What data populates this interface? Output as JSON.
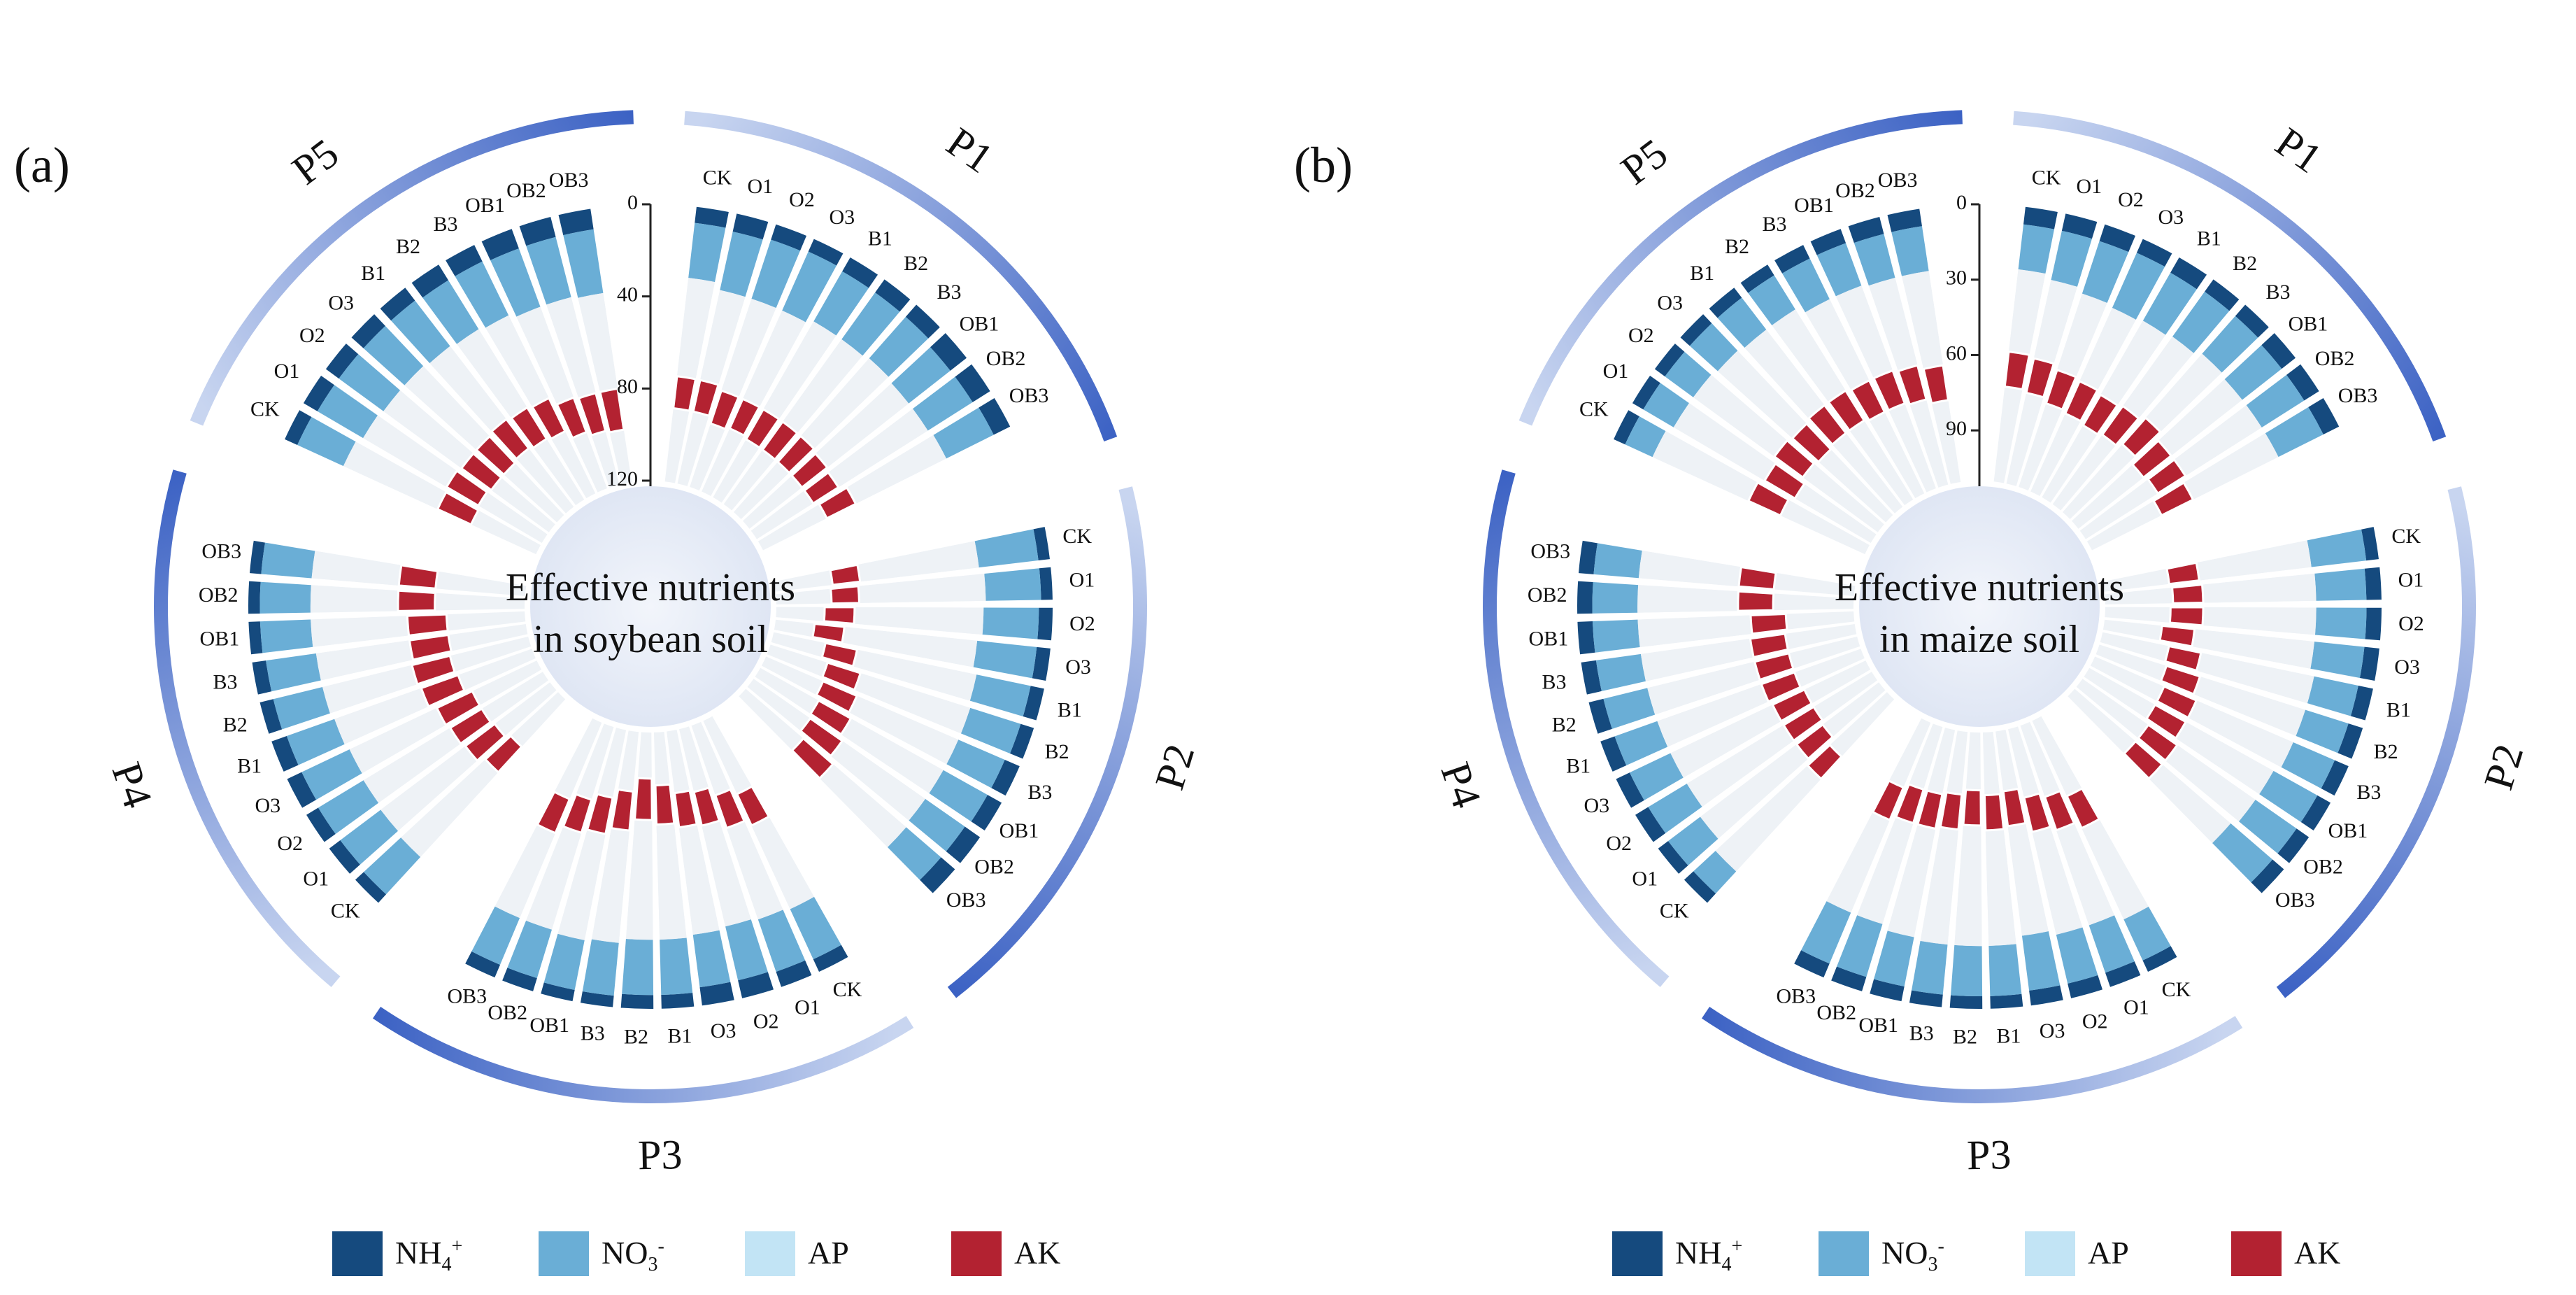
{
  "colors": {
    "NH4": "#154a7e",
    "NO3": "#6aaed6",
    "AP": "#c2e4f5",
    "AK": "#b32231",
    "track": "#eef2f6",
    "center_fill": "#dfe6f4",
    "arc_dark": "#3c62c4",
    "arc_light": "#c8d5f0"
  },
  "legend": {
    "NH4": {
      "base": "NH",
      "sub": "4",
      "sup": "+"
    },
    "NO3": {
      "base": "NO",
      "sub": "3",
      "sup": "-"
    },
    "AP": "AP",
    "AK": "AK"
  },
  "chart_data": [
    {
      "type": "circular-stacked-bar",
      "panel_label": "(a)",
      "center_title": [
        "Effective nutrients",
        "in soybean soil"
      ],
      "series": [
        "NH4+",
        "NO3-",
        "AP",
        "AK"
      ],
      "stack_order": "inner-to-outer: AK, AP, NO3-, NH4+",
      "radial_axis": {
        "ticks": [
          "0",
          "40",
          "80",
          "120"
        ],
        "max": 120
      },
      "groups": [
        {
          "name": "P1",
          "categories": [
            "CK",
            "O1",
            "O2",
            "O3",
            "B1",
            "B2",
            "B3",
            "OB1",
            "OB2",
            "OB3"
          ],
          "NH4": [
            7,
            8,
            7,
            6,
            7,
            7,
            7,
            9,
            9,
            8
          ],
          "NO3": [
            24,
            26,
            27,
            28,
            25,
            25,
            24,
            23,
            23,
            23
          ],
          "AP": [
            43,
            40,
            42,
            42,
            44,
            44,
            45,
            45,
            46,
            44
          ],
          "AK": [
            14,
            14,
            15,
            14,
            15,
            15,
            15,
            14,
            13,
            14
          ]
        },
        {
          "name": "P2",
          "categories": [
            "CK",
            "O1",
            "O2",
            "O3",
            "B1",
            "B2",
            "B3",
            "OB1",
            "OB2",
            "OB3"
          ],
          "NH4": [
            5,
            5,
            6,
            6,
            6,
            6,
            7,
            7,
            8,
            8
          ],
          "NO3": [
            26,
            24,
            24,
            26,
            24,
            23,
            22,
            22,
            21,
            20
          ],
          "AP": [
            52,
            55,
            56,
            58,
            53,
            50,
            48,
            46,
            44,
            42
          ],
          "AK": [
            12,
            12,
            13,
            13,
            14,
            15,
            16,
            16,
            17,
            17
          ]
        },
        {
          "name": "P3",
          "categories": [
            "CK",
            "O1",
            "O2",
            "O3",
            "B1",
            "B2",
            "B3",
            "OB1",
            "OB2",
            "OB3"
          ],
          "NH4": [
            6,
            7,
            8,
            8,
            6,
            6,
            5,
            5,
            6,
            6
          ],
          "NO3": [
            24,
            24,
            24,
            23,
            24,
            24,
            23,
            22,
            22,
            22
          ],
          "AP": [
            40,
            42,
            45,
            47,
            50,
            52,
            49,
            47,
            44,
            40
          ],
          "AK": [
            15,
            15,
            15,
            15,
            17,
            18,
            17,
            16,
            15,
            16
          ]
        },
        {
          "name": "P4",
          "categories": [
            "CK",
            "O1",
            "O2",
            "O3",
            "B1",
            "B2",
            "B3",
            "OB1",
            "OB2",
            "OB3"
          ],
          "NH4": [
            5,
            6,
            6,
            7,
            7,
            6,
            6,
            5,
            5,
            5
          ],
          "NO3": [
            22,
            22,
            23,
            23,
            22,
            22,
            22,
            22,
            22,
            22
          ],
          "AP": [
            50,
            46,
            44,
            42,
            40,
            40,
            41,
            42,
            38,
            38
          ],
          "AK": [
            15,
            16,
            16,
            17,
            17,
            17,
            17,
            17,
            16,
            16
          ]
        },
        {
          "name": "P5",
          "categories": [
            "CK",
            "O1",
            "O2",
            "O3",
            "B1",
            "B2",
            "B3",
            "OB1",
            "OB2",
            "OB3"
          ],
          "NH4": [
            6,
            7,
            7,
            7,
            7,
            8,
            8,
            9,
            9,
            9
          ],
          "NO3": [
            22,
            23,
            24,
            24,
            25,
            25,
            26,
            27,
            27,
            28
          ],
          "AP": [
            45,
            42,
            42,
            42,
            40,
            40,
            40,
            42,
            43,
            42
          ],
          "AK": [
            16,
            16,
            16,
            16,
            16,
            16,
            16,
            16,
            17,
            18
          ]
        }
      ]
    },
    {
      "type": "circular-stacked-bar",
      "panel_label": "(b)",
      "center_title": [
        "Effective nutrients",
        "in maize soil"
      ],
      "series": [
        "NH4+",
        "NO3-",
        "AP",
        "AK"
      ],
      "stack_order": "inner-to-outer: AK, AP, NO3-, NH4+",
      "radial_axis": {
        "ticks": [
          "0",
          "30",
          "60",
          "90"
        ],
        "max": 110
      },
      "groups": [
        {
          "name": "P1",
          "categories": [
            "CK",
            "O1",
            "O2",
            "O3",
            "B1",
            "B2",
            "B3",
            "OB1",
            "OB2",
            "OB3"
          ],
          "NH4": [
            7,
            7,
            7,
            6,
            7,
            6,
            6,
            7,
            7,
            7
          ],
          "NO3": [
            18,
            20,
            22,
            24,
            22,
            22,
            20,
            20,
            20,
            20
          ],
          "AP": [
            33,
            32,
            32,
            32,
            34,
            34,
            34,
            36,
            36,
            38
          ],
          "AK": [
            14,
            14,
            14,
            14,
            14,
            14,
            14,
            14,
            13,
            14
          ]
        },
        {
          "name": "P2",
          "categories": [
            "CK",
            "O1",
            "O2",
            "O3",
            "B1",
            "B2",
            "B3",
            "OB1",
            "OB2",
            "OB3"
          ],
          "NH4": [
            5,
            6,
            6,
            6,
            6,
            6,
            6,
            6,
            6,
            6
          ],
          "NO3": [
            22,
            20,
            20,
            20,
            18,
            18,
            18,
            20,
            20,
            22
          ],
          "AP": [
            45,
            45,
            45,
            48,
            46,
            44,
            42,
            40,
            38,
            36
          ],
          "AK": [
            12,
            12,
            13,
            13,
            13,
            14,
            14,
            14,
            14,
            14
          ]
        },
        {
          "name": "P3",
          "categories": [
            "CK",
            "O1",
            "O2",
            "O3",
            "B1",
            "B2",
            "B3",
            "OB1",
            "OB2",
            "OB3"
          ],
          "NH4": [
            5,
            6,
            6,
            6,
            5,
            5,
            5,
            6,
            6,
            6
          ],
          "NO3": [
            18,
            20,
            20,
            22,
            20,
            20,
            20,
            20,
            22,
            22
          ],
          "AP": [
            40,
            40,
            42,
            44,
            46,
            48,
            46,
            44,
            42,
            40
          ],
          "AK": [
            14,
            14,
            14,
            14,
            14,
            14,
            14,
            14,
            14,
            14
          ]
        },
        {
          "name": "P4",
          "categories": [
            "CK",
            "O1",
            "O2",
            "O3",
            "B1",
            "B2",
            "B3",
            "OB1",
            "OB2",
            "OB3"
          ],
          "NH4": [
            5,
            5,
            6,
            6,
            6,
            6,
            6,
            6,
            6,
            6
          ],
          "NO3": [
            12,
            16,
            18,
            18,
            18,
            18,
            18,
            18,
            18,
            18
          ],
          "AP": [
            50,
            48,
            45,
            45,
            44,
            44,
            44,
            45,
            40,
            40
          ],
          "AK": [
            12,
            13,
            14,
            14,
            14,
            14,
            14,
            14,
            14,
            14
          ]
        },
        {
          "name": "P5",
          "categories": [
            "CK",
            "O1",
            "O2",
            "O3",
            "B1",
            "B2",
            "B3",
            "OB1",
            "OB2",
            "OB3"
          ],
          "NH4": [
            5,
            5,
            5,
            5,
            5,
            5,
            6,
            6,
            7,
            7
          ],
          "NO3": [
            12,
            14,
            14,
            15,
            16,
            16,
            18,
            18,
            18,
            18
          ],
          "AP": [
            42,
            42,
            40,
            40,
            38,
            38,
            36,
            36,
            36,
            38
          ],
          "AK": [
            14,
            14,
            14,
            14,
            14,
            14,
            14,
            14,
            14,
            14
          ]
        }
      ]
    }
  ]
}
